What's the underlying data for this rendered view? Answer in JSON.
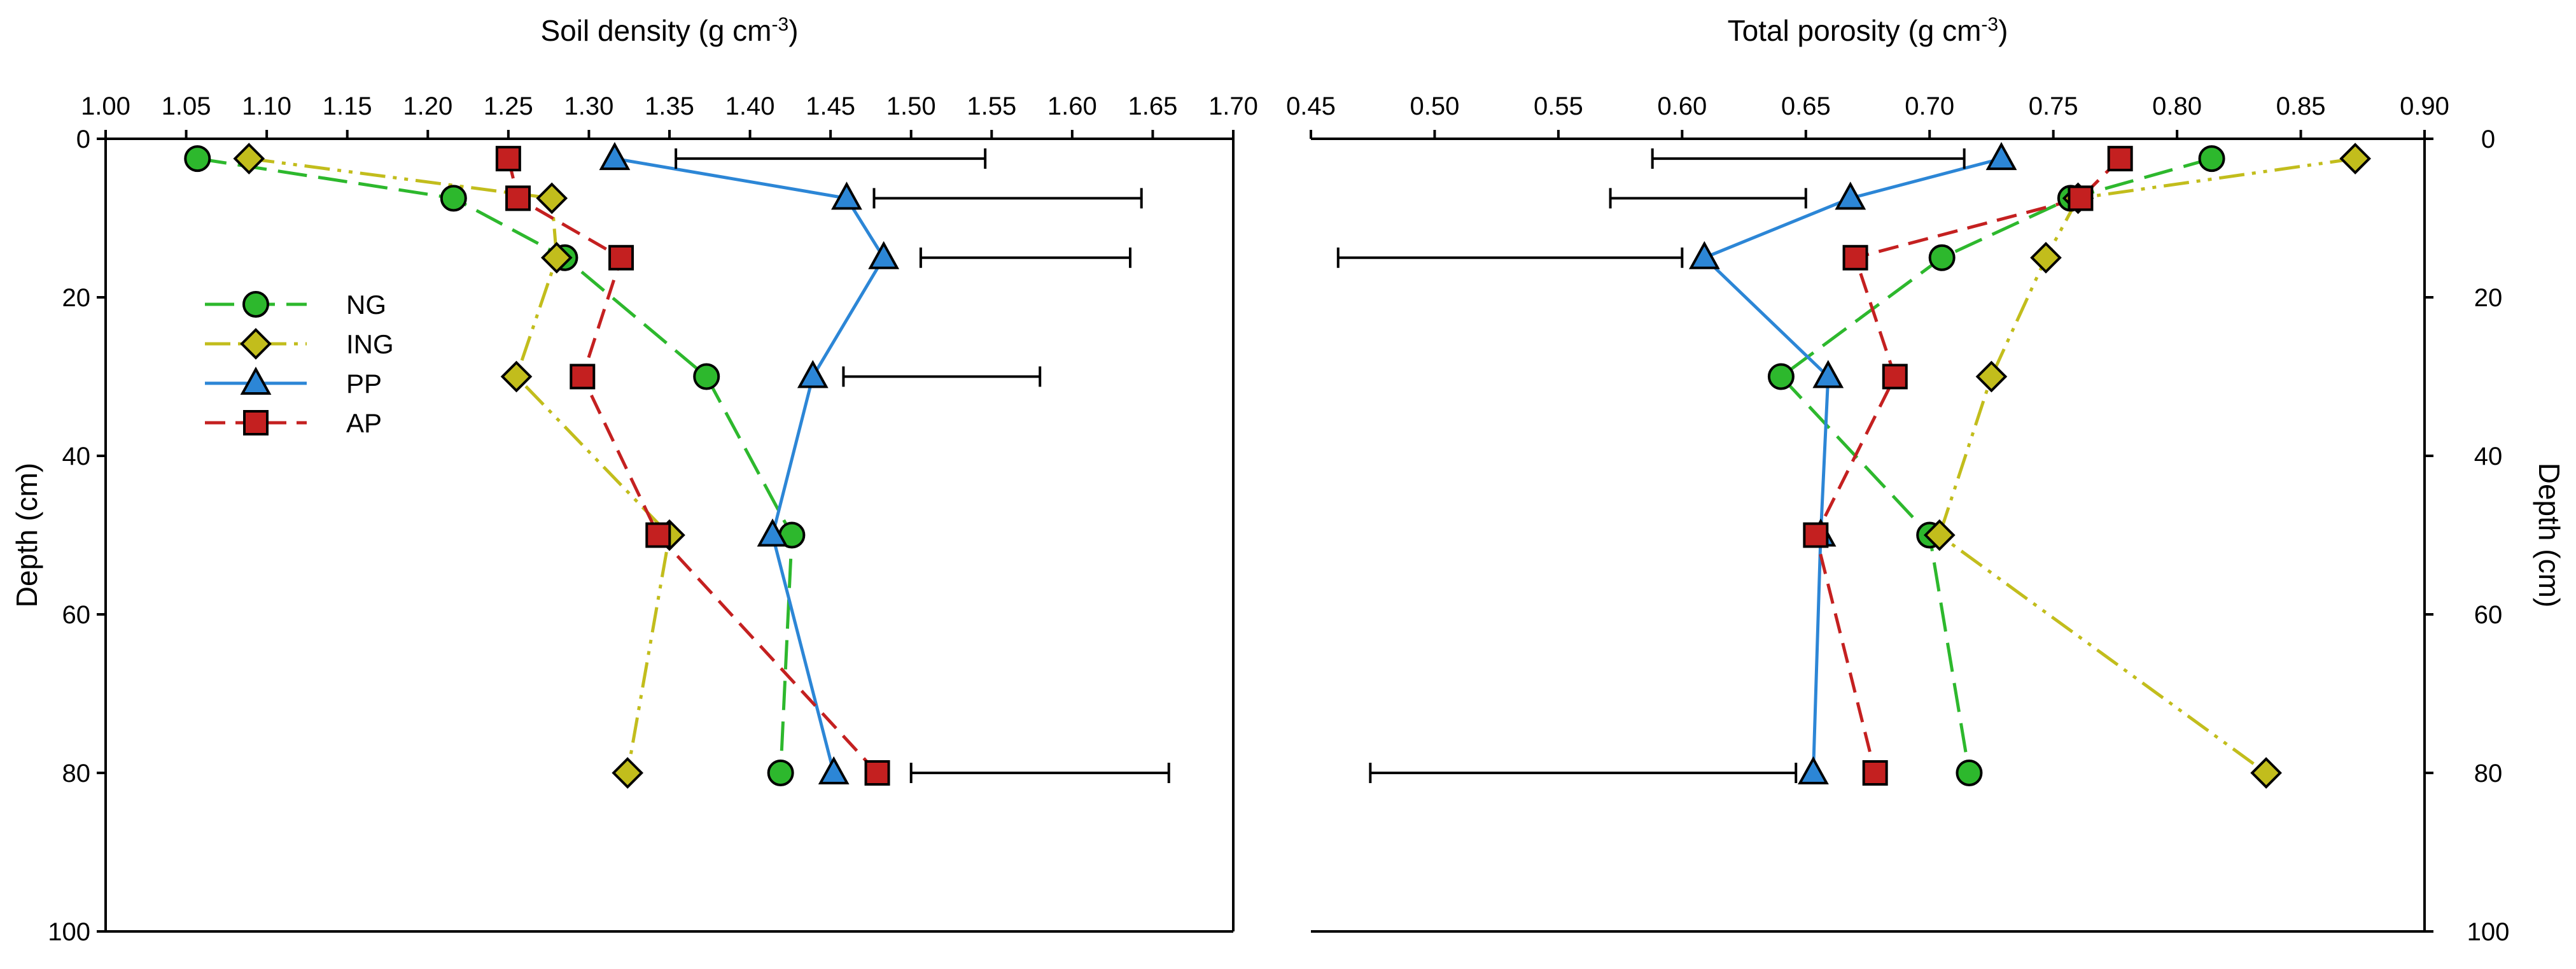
{
  "chart_data": [
    {
      "type": "line",
      "title": "",
      "xlabel_base": "Soil density (g cm",
      "xlabel_sup": "-3",
      "xlabel_end": ")",
      "ylabel": "Depth (cm)",
      "xlim": [
        1.0,
        1.7
      ],
      "ylim": [
        0,
        100
      ],
      "y_inverted": true,
      "x_ticks": [
        "1.00",
        "1.05",
        "1.10",
        "1.15",
        "1.20",
        "1.25",
        "1.30",
        "1.35",
        "1.40",
        "1.45",
        "1.50",
        "1.55",
        "1.60",
        "1.65",
        "1.70"
      ],
      "y_ticks": [
        "0",
        "20",
        "40",
        "60",
        "80",
        "100"
      ],
      "depths": [
        2.5,
        7.5,
        15,
        30,
        50,
        80
      ],
      "series": [
        {
          "name": "NG",
          "color": "#2db82d",
          "marker": "circle",
          "dash": "long-dash",
          "values": [
            1.057,
            1.216,
            1.285,
            1.373,
            1.426,
            1.419
          ]
        },
        {
          "name": "ING",
          "color": "#c2bd1c",
          "marker": "diamond",
          "dash": "dash-dot-dot",
          "values": [
            1.089,
            1.277,
            1.28,
            1.255,
            1.35,
            1.324
          ]
        },
        {
          "name": "PP",
          "color": "#2c86d6",
          "marker": "triangle",
          "dash": "solid",
          "values": [
            1.316,
            1.46,
            1.483,
            1.439,
            1.414,
            1.452
          ]
        },
        {
          "name": "AP",
          "color": "#c42020",
          "marker": "square",
          "dash": "dash",
          "values": [
            1.25,
            1.256,
            1.32,
            1.296,
            1.343,
            1.479
          ]
        }
      ],
      "error_bars": [
        {
          "depth": 2.5,
          "from": 1.354,
          "to": 1.546
        },
        {
          "depth": 7.5,
          "from": 1.477,
          "to": 1.643
        },
        {
          "depth": 15,
          "from": 1.506,
          "to": 1.636
        },
        {
          "depth": 30,
          "from": 1.458,
          "to": 1.58
        },
        {
          "depth": 80,
          "from": 1.5,
          "to": 1.66
        }
      ],
      "legend": {
        "position": "left",
        "entries": [
          "NG",
          "ING",
          "PP",
          "AP"
        ]
      }
    },
    {
      "type": "line",
      "title": "",
      "xlabel_base": "Total porosity (g cm",
      "xlabel_sup": "-3",
      "xlabel_end": ")",
      "ylabel": "Depth (cm)",
      "xlim": [
        0.45,
        0.9
      ],
      "ylim": [
        0,
        100
      ],
      "y_inverted": true,
      "x_ticks": [
        "0.45",
        "0.50",
        "0.55",
        "0.60",
        "0.65",
        "0.70",
        "0.75",
        "0.80",
        "0.85",
        "0.90"
      ],
      "y_ticks": [
        "0",
        "20",
        "40",
        "60",
        "80",
        "100"
      ],
      "depths": [
        2.5,
        7.5,
        15,
        30,
        50,
        80
      ],
      "series": [
        {
          "name": "NG",
          "color": "#2db82d",
          "marker": "circle",
          "dash": "long-dash",
          "values": [
            0.814,
            0.757,
            0.705,
            0.64,
            0.7,
            0.716
          ]
        },
        {
          "name": "ING",
          "color": "#c2bd1c",
          "marker": "diamond",
          "dash": "dash-dot-dot",
          "values": [
            0.872,
            0.76,
            0.747,
            0.725,
            0.704,
            0.836
          ]
        },
        {
          "name": "PP",
          "color": "#2c86d6",
          "marker": "triangle",
          "dash": "solid",
          "values": [
            0.729,
            0.668,
            0.609,
            0.659,
            0.656,
            0.653
          ]
        },
        {
          "name": "AP",
          "color": "#c42020",
          "marker": "square",
          "dash": "dash",
          "values": [
            0.777,
            0.761,
            0.67,
            0.686,
            0.654,
            0.678
          ]
        }
      ],
      "error_bars": [
        {
          "depth": 2.5,
          "from": 0.588,
          "to": 0.714
        },
        {
          "depth": 7.5,
          "from": 0.571,
          "to": 0.65
        },
        {
          "depth": 15,
          "from": 0.461,
          "to": 0.6
        },
        {
          "depth": 80,
          "from": 0.474,
          "to": 0.646
        }
      ]
    }
  ]
}
